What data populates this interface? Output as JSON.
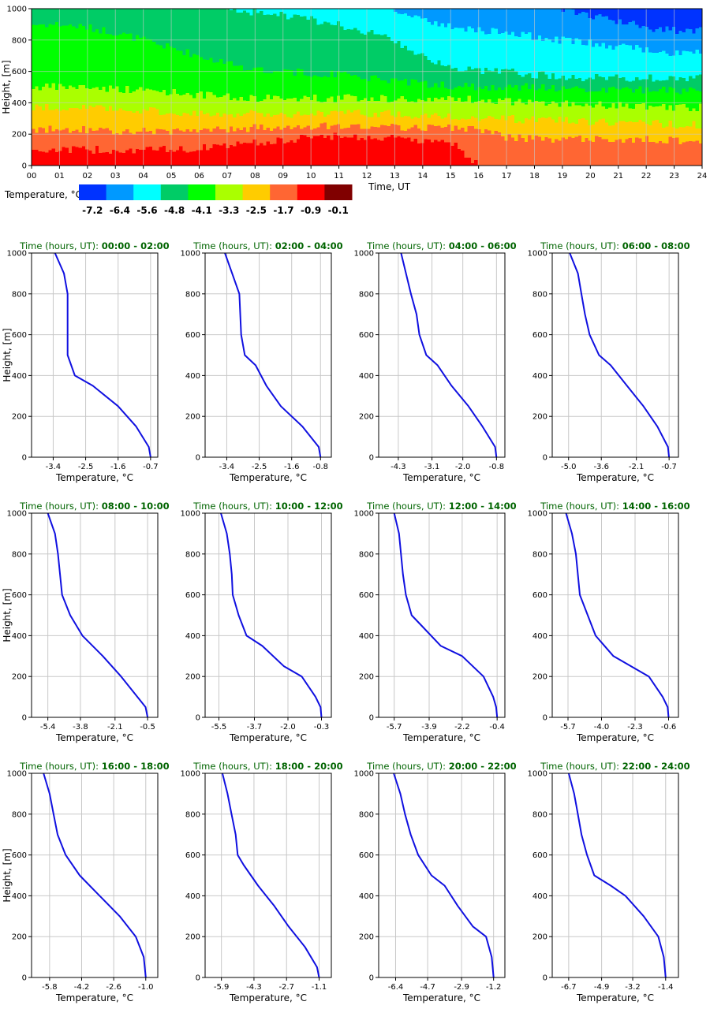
{
  "chart_data": [
    {
      "type": "heatmap",
      "title": "",
      "xlabel": "Time, UT",
      "ylabel": "Height, [m]",
      "x_ticks": [
        "00",
        "01",
        "02",
        "03",
        "04",
        "05",
        "06",
        "07",
        "08",
        "09",
        "10",
        "11",
        "12",
        "13",
        "14",
        "15",
        "16",
        "17",
        "18",
        "19",
        "20",
        "21",
        "22",
        "23",
        "24"
      ],
      "y_ticks": [
        "0",
        "200",
        "400",
        "600",
        "800",
        "1000"
      ],
      "xlim": [
        0,
        24
      ],
      "ylim": [
        0,
        1000
      ],
      "legend": {
        "title": "Temperature, °C",
        "labels": [
          "-7.2",
          "-6.4",
          "-5.6",
          "-4.8",
          "-4.1",
          "-3.3",
          "-2.5",
          "-1.7",
          "-0.9",
          "-0.1"
        ],
        "colors": [
          "#0033ff",
          "#0099ff",
          "#00ffff",
          "#00cc66",
          "#00ff00",
          "#aaff00",
          "#ffcc00",
          "#ff6633",
          "#ff0000",
          "#800000"
        ]
      },
      "band_tops_m": [
        {
          "time": [
            0,
            1,
            2,
            3,
            4,
            5,
            6,
            7,
            8,
            9,
            10,
            11,
            12,
            13,
            14,
            15,
            16,
            17,
            18,
            19,
            20,
            21,
            22,
            23,
            24
          ]
        },
        {
          "level": "-0.9",
          "top": [
            100,
            100,
            100,
            100,
            100,
            100,
            110,
            130,
            150,
            160,
            180,
            190,
            180,
            170,
            160,
            150,
            0,
            0,
            0,
            0,
            0,
            0,
            0,
            0,
            0
          ]
        },
        {
          "level": "-1.7",
          "top": [
            230,
            230,
            230,
            220,
            220,
            220,
            220,
            230,
            240,
            240,
            250,
            250,
            250,
            240,
            240,
            240,
            240,
            180,
            170,
            170,
            170,
            170,
            170,
            160,
            160
          ]
        },
        {
          "level": "-2.5",
          "top": [
            370,
            370,
            370,
            360,
            350,
            340,
            330,
            330,
            330,
            330,
            330,
            340,
            330,
            330,
            320,
            320,
            300,
            300,
            290,
            290,
            280,
            270,
            270,
            260,
            260
          ]
        },
        {
          "level": "-3.3",
          "top": [
            500,
            500,
            500,
            490,
            480,
            470,
            450,
            440,
            430,
            430,
            430,
            430,
            430,
            430,
            420,
            420,
            420,
            410,
            400,
            390,
            390,
            380,
            380,
            370,
            370
          ]
        },
        {
          "level": "-4.1",
          "top": [
            900,
            900,
            880,
            850,
            800,
            750,
            700,
            650,
            620,
            600,
            590,
            580,
            560,
            540,
            520,
            510,
            500,
            500,
            500,
            490,
            490,
            480,
            480,
            480,
            480
          ]
        },
        {
          "level": "-4.8",
          "top": [
            1000,
            1000,
            1000,
            1000,
            1000,
            1000,
            1000,
            1000,
            980,
            960,
            930,
            900,
            850,
            800,
            700,
            620,
            600,
            600,
            580,
            570,
            560,
            560,
            560,
            560,
            560
          ]
        },
        {
          "level": "-5.6",
          "top": [
            1000,
            1000,
            1000,
            1000,
            1000,
            1000,
            1000,
            1000,
            1000,
            1000,
            1000,
            1000,
            1000,
            1000,
            920,
            880,
            860,
            850,
            820,
            800,
            780,
            760,
            740,
            720,
            720
          ]
        },
        {
          "level": "-6.4",
          "top": [
            1000,
            1000,
            1000,
            1000,
            1000,
            1000,
            1000,
            1000,
            1000,
            1000,
            1000,
            1000,
            1000,
            1000,
            1000,
            1000,
            1000,
            1000,
            1000,
            1000,
            950,
            920,
            880,
            860,
            860
          ]
        },
        {
          "level": "-7.2",
          "top": [
            1000,
            1000,
            1000,
            1000,
            1000,
            1000,
            1000,
            1000,
            1000,
            1000,
            1000,
            1000,
            1000,
            1000,
            1000,
            1000,
            1000,
            1000,
            1000,
            1000,
            1000,
            1000,
            1000,
            1000,
            1000
          ]
        }
      ]
    },
    {
      "type": "line",
      "title_prefix": "Time (hours, UT): ",
      "title_range": "00:00 - 02:00",
      "xlabel": "Temperature, °C",
      "ylabel": "Height, [m]",
      "x_ticks": [
        "-3.4",
        "-2.5",
        "-1.6",
        "-0.7"
      ],
      "xlim": [
        -4.0,
        -0.5
      ],
      "ylim": [
        0,
        1000
      ],
      "y_ticks": [
        "0",
        "200",
        "400",
        "600",
        "800",
        "1000"
      ],
      "x": [
        -0.7,
        -0.75,
        -1.1,
        -1.6,
        -2.3,
        -2.8,
        -3.0,
        -3.0,
        -3.0,
        -3.1,
        -3.35
      ],
      "y": [
        0,
        50,
        150,
        250,
        350,
        400,
        500,
        600,
        800,
        900,
        1000
      ]
    },
    {
      "type": "line",
      "title_prefix": "Time (hours, UT): ",
      "title_range": "02:00 - 04:00",
      "xlabel": "Temperature, °C",
      "ylabel": "Height, [m]",
      "x_ticks": [
        "-3.4",
        "-2.5",
        "-1.6",
        "-0.8"
      ],
      "xlim": [
        -4.0,
        -0.5
      ],
      "ylim": [
        0,
        1000
      ],
      "y_ticks": [
        "0",
        "200",
        "400",
        "600",
        "800",
        "1000"
      ],
      "x": [
        -0.8,
        -0.85,
        -1.3,
        -1.9,
        -2.3,
        -2.6,
        -2.9,
        -3.0,
        -3.05,
        -3.25,
        -3.45
      ],
      "y": [
        0,
        50,
        150,
        250,
        350,
        450,
        500,
        600,
        800,
        900,
        1000
      ]
    },
    {
      "type": "line",
      "title_prefix": "Time (hours, UT): ",
      "title_range": "04:00 - 06:00",
      "xlabel": "Temperature, °C",
      "ylabel": "Height, [m]",
      "x_ticks": [
        "-4.3",
        "-3.1",
        "-2.0",
        "-0.8"
      ],
      "xlim": [
        -5.0,
        -0.5
      ],
      "ylim": [
        0,
        1000
      ],
      "y_ticks": [
        "0",
        "200",
        "400",
        "600",
        "800",
        "1000"
      ],
      "x": [
        -0.8,
        -0.85,
        -1.3,
        -1.8,
        -2.4,
        -2.9,
        -3.3,
        -3.55,
        -3.65,
        -3.85,
        -4.2
      ],
      "y": [
        0,
        50,
        150,
        250,
        350,
        450,
        500,
        600,
        700,
        800,
        1000
      ]
    },
    {
      "type": "line",
      "title_prefix": "Time (hours, UT): ",
      "title_range": "06:00 - 08:00",
      "xlabel": "Temperature, °C",
      "ylabel": "Height, [m]",
      "x_ticks": [
        "-5.0",
        "-3.6",
        "-2.1",
        "-0.7"
      ],
      "xlim": [
        -5.7,
        -0.3
      ],
      "ylim": [
        0,
        1000
      ],
      "y_ticks": [
        "0",
        "200",
        "400",
        "600",
        "800",
        "1000"
      ],
      "x": [
        -0.7,
        -0.75,
        -1.2,
        -1.8,
        -2.5,
        -3.2,
        -3.7,
        -4.1,
        -4.3,
        -4.45,
        -4.6,
        -4.95
      ],
      "y": [
        0,
        50,
        150,
        250,
        350,
        450,
        500,
        600,
        700,
        800,
        900,
        1000
      ]
    },
    {
      "type": "line",
      "title_prefix": "Time (hours, UT): ",
      "title_range": "08:00 - 10:00",
      "xlabel": "Temperature, °C",
      "ylabel": "Height, [m]",
      "x_ticks": [
        "-5.4",
        "-3.8",
        "-2.1",
        "-0.5"
      ],
      "xlim": [
        -6.2,
        0.0
      ],
      "ylim": [
        0,
        1000
      ],
      "y_ticks": [
        "0",
        "200",
        "400",
        "600",
        "800",
        "1000"
      ],
      "x": [
        -0.5,
        -0.6,
        -1.0,
        -1.8,
        -2.7,
        -3.7,
        -4.3,
        -4.7,
        -4.8,
        -4.9,
        -5.05,
        -5.4
      ],
      "y": [
        0,
        50,
        100,
        200,
        300,
        400,
        500,
        600,
        700,
        800,
        900,
        1000
      ]
    },
    {
      "type": "line",
      "title_prefix": "Time (hours, UT): ",
      "title_range": "10:00 - 12:00",
      "xlabel": "Temperature, °C",
      "ylabel": "Height, [m]",
      "x_ticks": [
        "-5.5",
        "-3.7",
        "-2.0",
        "-0.3"
      ],
      "xlim": [
        -6.2,
        0.2
      ],
      "ylim": [
        0,
        1000
      ],
      "y_ticks": [
        "0",
        "200",
        "400",
        "600",
        "800",
        "1000"
      ],
      "x": [
        -0.3,
        -0.35,
        -0.6,
        -1.3,
        -2.2,
        -3.3,
        -4.1,
        -4.5,
        -4.8,
        -4.85,
        -4.95,
        -5.1,
        -5.4
      ],
      "y": [
        0,
        50,
        100,
        200,
        250,
        350,
        400,
        500,
        600,
        700,
        800,
        900,
        1000
      ]
    },
    {
      "type": "line",
      "title_prefix": "Time (hours, UT): ",
      "title_range": "12:00 - 14:00",
      "xlabel": "Temperature, °C",
      "ylabel": "Height, [m]",
      "x_ticks": [
        "-5.7",
        "-3.9",
        "-2.2",
        "-0.4"
      ],
      "xlim": [
        -6.5,
        0.0
      ],
      "ylim": [
        0,
        1000
      ],
      "y_ticks": [
        "0",
        "200",
        "400",
        "600",
        "800",
        "1000"
      ],
      "x": [
        -0.4,
        -0.45,
        -0.6,
        -1.1,
        -2.2,
        -3.3,
        -4.3,
        -4.8,
        -5.1,
        -5.25,
        -5.35,
        -5.45,
        -5.7
      ],
      "y": [
        0,
        50,
        100,
        200,
        300,
        350,
        450,
        500,
        600,
        700,
        800,
        900,
        1000
      ]
    },
    {
      "type": "line",
      "title_prefix": "Time (hours, UT): ",
      "title_range": "14:00 - 16:00",
      "xlabel": "Temperature, °C",
      "ylabel": "Height, [m]",
      "x_ticks": [
        "-5.7",
        "-4.0",
        "-2.3",
        "-0.6"
      ],
      "xlim": [
        -6.5,
        -0.1
      ],
      "ylim": [
        0,
        1000
      ],
      "y_ticks": [
        "0",
        "200",
        "400",
        "600",
        "800",
        "1000"
      ],
      "x": [
        -0.6,
        -0.65,
        -0.9,
        -1.6,
        -2.5,
        -3.4,
        -4.3,
        -4.7,
        -5.1,
        -5.2,
        -5.3,
        -5.5,
        -5.8
      ],
      "y": [
        0,
        50,
        100,
        200,
        250,
        300,
        400,
        500,
        600,
        700,
        800,
        900,
        1000
      ]
    },
    {
      "type": "line",
      "title_prefix": "Time (hours, UT): ",
      "title_range": "16:00 - 18:00",
      "xlabel": "Temperature, °C",
      "ylabel": "Height, [m]",
      "x_ticks": [
        "-5.8",
        "-4.2",
        "-2.6",
        "-1.0"
      ],
      "xlim": [
        -6.7,
        -0.4
      ],
      "ylim": [
        0,
        1000
      ],
      "y_ticks": [
        "0",
        "200",
        "400",
        "600",
        "800",
        "1000"
      ],
      "x": [
        -1.0,
        -1.1,
        -1.5,
        -2.3,
        -3.3,
        -4.3,
        -5.0,
        -5.4,
        -5.6,
        -5.8,
        -6.1
      ],
      "y": [
        0,
        100,
        200,
        300,
        400,
        500,
        600,
        700,
        800,
        900,
        1000
      ]
    },
    {
      "type": "line",
      "title_prefix": "Time (hours, UT): ",
      "title_range": "18:00 - 20:00",
      "xlabel": "Temperature, °C",
      "ylabel": "Height, [m]",
      "x_ticks": [
        "-5.9",
        "-4.3",
        "-2.7",
        "-1.1"
      ],
      "xlim": [
        -6.7,
        -0.5
      ],
      "ylim": [
        0,
        1000
      ],
      "y_ticks": [
        "0",
        "200",
        "400",
        "600",
        "800",
        "1000"
      ],
      "x": [
        -1.1,
        -1.2,
        -1.8,
        -2.6,
        -3.3,
        -4.1,
        -4.8,
        -5.1,
        -5.2,
        -5.4,
        -5.6,
        -5.85
      ],
      "y": [
        0,
        50,
        150,
        250,
        350,
        450,
        550,
        600,
        700,
        800,
        900,
        1000
      ]
    },
    {
      "type": "line",
      "title_prefix": "Time (hours, UT): ",
      "title_range": "20:00 - 22:00",
      "xlabel": "Temperature, °C",
      "ylabel": "Height, [m]",
      "x_ticks": [
        "-6.4",
        "-4.7",
        "-2.9",
        "-1.2"
      ],
      "xlim": [
        -7.3,
        -0.6
      ],
      "ylim": [
        0,
        1000
      ],
      "y_ticks": [
        "0",
        "200",
        "400",
        "600",
        "800",
        "1000"
      ],
      "x": [
        -1.2,
        -1.3,
        -1.6,
        -2.3,
        -3.1,
        -3.8,
        -4.5,
        -5.2,
        -5.6,
        -5.9,
        -6.15,
        -6.5
      ],
      "y": [
        0,
        100,
        200,
        250,
        350,
        450,
        500,
        600,
        700,
        800,
        900,
        1000
      ]
    },
    {
      "type": "line",
      "title_prefix": "Time (hours, UT): ",
      "title_range": "22:00 - 24:00",
      "xlabel": "Temperature, °C",
      "ylabel": "Height, [m]",
      "x_ticks": [
        "-6.7",
        "-4.9",
        "-3.2",
        "-1.4"
      ],
      "xlim": [
        -7.6,
        -0.7
      ],
      "ylim": [
        0,
        1000
      ],
      "y_ticks": [
        "0",
        "200",
        "400",
        "600",
        "800",
        "1000"
      ],
      "x": [
        -1.4,
        -1.5,
        -1.8,
        -2.6,
        -3.6,
        -4.4,
        -5.3,
        -5.7,
        -6.0,
        -6.2,
        -6.4,
        -6.7
      ],
      "y": [
        0,
        100,
        200,
        300,
        400,
        450,
        500,
        600,
        700,
        800,
        900,
        1000
      ]
    }
  ]
}
